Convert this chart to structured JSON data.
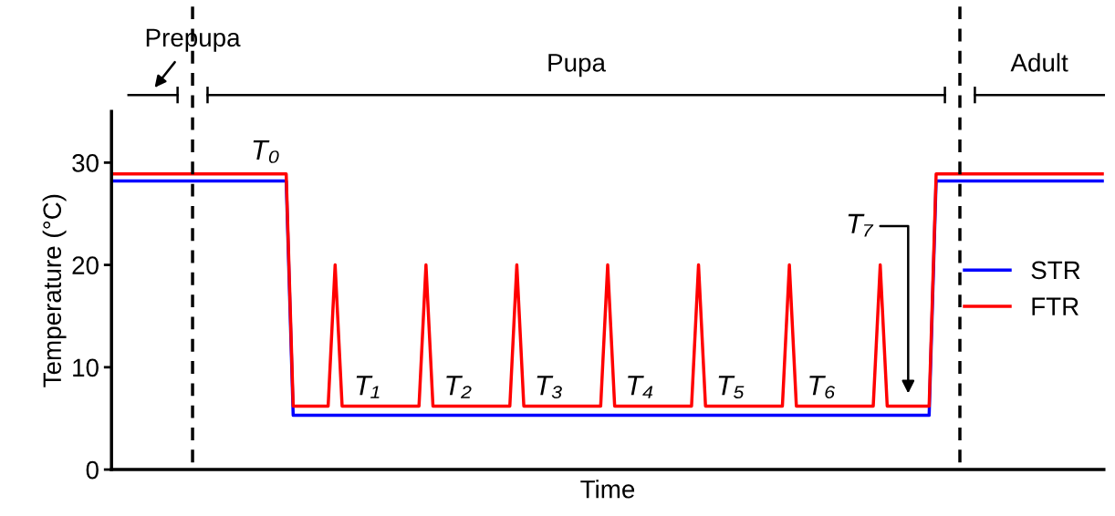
{
  "chart_data": {
    "type": "line",
    "xlabel": "Time",
    "ylabel": "Temperature (°C)",
    "categories": [
      null,
      null,
      null,
      null,
      null,
      null,
      null,
      null,
      null,
      null,
      null,
      null,
      null,
      null,
      null,
      null,
      null,
      null,
      null,
      null,
      null,
      null,
      null,
      null,
      null,
      null,
      null,
      null,
      null,
      null,
      null,
      null,
      null,
      null,
      null,
      null,
      null,
      null,
      null,
      null,
      null,
      null,
      null,
      null,
      null,
      null,
      null,
      null,
      null,
      null,
      null,
      null,
      null,
      null,
      null,
      null,
      null,
      null,
      null,
      null,
      null,
      null,
      null,
      null,
      null,
      null,
      null,
      null,
      null,
      null,
      null,
      null,
      null,
      null,
      null,
      null,
      null,
      null,
      null,
      null,
      null,
      null,
      null,
      null,
      null,
      null,
      null,
      null,
      null,
      null,
      null,
      null,
      null,
      null,
      null,
      null,
      null,
      null,
      null,
      null,
      null,
      null,
      null,
      null,
      null,
      null,
      null,
      null,
      null,
      null,
      null,
      null,
      null,
      null,
      null,
      null,
      null,
      null,
      null,
      null,
      null,
      null,
      null,
      null,
      null,
      null,
      null,
      null,
      null,
      null,
      null,
      null,
      null,
      null,
      null,
      null,
      null,
      null,
      null,
      null,
      null,
      null,
      null
    ],
    "ylim": [
      0,
      35
    ],
    "yticks": [
      0,
      10,
      20,
      30
    ],
    "tick_labels": "y",
    "grid": false,
    "legend": "center right",
    "marker": "none",
    "line_style": "solid",
    "series": [
      {
        "name": "STR",
        "color": "#0000ff",
        "values": [
          28.2,
          28.2,
          28.2,
          28.2,
          28.2,
          28.2,
          28.2,
          28.2,
          28.2,
          28.2,
          28.2,
          28.2,
          28.2,
          28.2,
          28.2,
          28.2,
          28.2,
          28.2,
          28.2,
          28.2,
          28.2,
          28.2,
          28.2,
          28.2,
          28.2,
          28.2,
          5.3,
          5.3,
          5.3,
          5.3,
          5.3,
          5.3,
          5.3,
          5.3,
          5.3,
          5.3,
          5.3,
          5.3,
          5.3,
          5.3,
          5.3,
          5.3,
          5.3,
          5.3,
          5.3,
          5.3,
          5.3,
          5.3,
          5.3,
          5.3,
          5.3,
          5.3,
          5.3,
          5.3,
          5.3,
          5.3,
          5.3,
          5.3,
          5.3,
          5.3,
          5.3,
          5.3,
          5.3,
          5.3,
          5.3,
          5.3,
          5.3,
          5.3,
          5.3,
          5.3,
          5.3,
          5.3,
          5.3,
          5.3,
          5.3,
          5.3,
          5.3,
          5.3,
          5.3,
          5.3,
          5.3,
          5.3,
          5.3,
          5.3,
          5.3,
          5.3,
          5.3,
          5.3,
          5.3,
          5.3,
          5.3,
          5.3,
          5.3,
          5.3,
          5.3,
          5.3,
          5.3,
          5.3,
          5.3,
          5.3,
          5.3,
          5.3,
          5.3,
          5.3,
          5.3,
          5.3,
          5.3,
          5.3,
          5.3,
          5.3,
          5.3,
          5.3,
          5.3,
          5.3,
          5.3,
          5.3,
          5.3,
          5.3,
          28.2,
          28.2,
          28.2,
          28.2,
          28.2,
          28.2,
          28.2,
          28.2,
          28.2,
          28.2,
          28.2,
          28.2,
          28.2,
          28.2,
          28.2,
          28.2,
          28.2,
          28.2,
          28.2,
          28.2,
          28.2,
          28.2,
          28.2,
          28.2,
          28.2
        ]
      },
      {
        "name": "FTR",
        "color": "#ff0000",
        "values": [
          28.9,
          28.9,
          28.9,
          28.9,
          28.9,
          28.9,
          28.9,
          28.9,
          28.9,
          28.9,
          28.9,
          28.9,
          28.9,
          28.9,
          28.9,
          28.9,
          28.9,
          28.9,
          28.9,
          28.9,
          28.9,
          28.9,
          28.9,
          28.9,
          28.9,
          28.9,
          6.2,
          6.2,
          6.2,
          6.2,
          6.2,
          6.2,
          20,
          6.2,
          6.2,
          6.2,
          6.2,
          6.2,
          6.2,
          6.2,
          6.2,
          6.2,
          6.2,
          6.2,
          6.2,
          20,
          6.2,
          6.2,
          6.2,
          6.2,
          6.2,
          6.2,
          6.2,
          6.2,
          6.2,
          6.2,
          6.2,
          6.2,
          20,
          6.2,
          6.2,
          6.2,
          6.2,
          6.2,
          6.2,
          6.2,
          6.2,
          6.2,
          6.2,
          6.2,
          6.2,
          20,
          6.2,
          6.2,
          6.2,
          6.2,
          6.2,
          6.2,
          6.2,
          6.2,
          6.2,
          6.2,
          6.2,
          6.2,
          20,
          6.2,
          6.2,
          6.2,
          6.2,
          6.2,
          6.2,
          6.2,
          6.2,
          6.2,
          6.2,
          6.2,
          6.2,
          20,
          6.2,
          6.2,
          6.2,
          6.2,
          6.2,
          6.2,
          6.2,
          6.2,
          6.2,
          6.2,
          6.2,
          6.2,
          20,
          6.2,
          6.2,
          6.2,
          6.2,
          6.2,
          6.2,
          6.2,
          28.9,
          28.9,
          28.9,
          28.9,
          28.9,
          28.9,
          28.9,
          28.9,
          28.9,
          28.9,
          28.9,
          28.9,
          28.9,
          28.9,
          28.9,
          28.9,
          28.9,
          28.9,
          28.9,
          28.9,
          28.9,
          28.9,
          28.9,
          28.9,
          28.9
        ]
      }
    ],
    "annotations": [
      "Prepupa",
      "Pupa",
      "Adult",
      "T₀",
      "T₁",
      "T₂",
      "T₃",
      "T₄",
      "T₅",
      "T₆",
      "T₇"
    ]
  }
}
